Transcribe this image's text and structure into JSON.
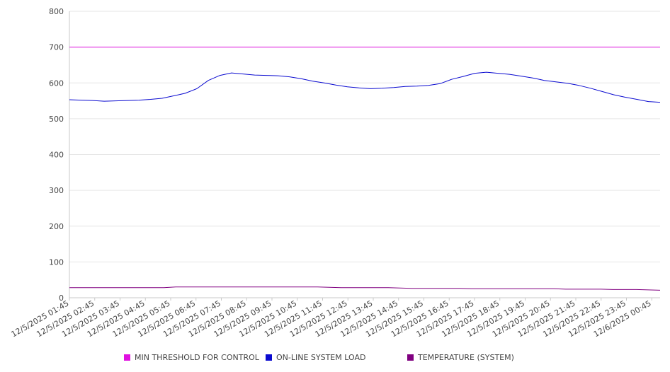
{
  "chart_data": {
    "type": "line",
    "title": "",
    "xlabel": "",
    "ylabel": "",
    "ylim": [
      0,
      800
    ],
    "yticks": [
      0,
      100,
      200,
      300,
      400,
      500,
      600,
      700,
      800
    ],
    "grid": true,
    "legend_position": "bottom",
    "x_tick_labels": [
      "12/5/2025 01:45",
      "12/5/2025 02:45",
      "12/5/2025 03:45",
      "12/5/2025 04:45",
      "12/5/2025 05:45",
      "12/5/2025 06:45",
      "12/5/2025 07:45",
      "12/5/2025 08:45",
      "12/5/2025 09:45",
      "12/5/2025 10:45",
      "12/5/2025 11:45",
      "12/5/2025 12:45",
      "12/5/2025 13:45",
      "12/5/2025 14:45",
      "12/5/2025 15:45",
      "12/5/2025 16:45",
      "12/5/2025 17:45",
      "12/5/2025 18:45",
      "12/5/2025 19:45",
      "12/5/2025 20:45",
      "12/5/2025 21:45",
      "12/5/2025 22:45",
      "12/5/2025 23:45",
      "12/6/2025 00:45"
    ],
    "series": [
      {
        "name": "MIN THRESHOLD FOR CONTROL",
        "color": "#e010e0",
        "values": [
          700,
          700,
          700,
          700,
          700,
          700,
          700,
          700,
          700,
          700,
          700,
          700,
          700,
          700,
          700,
          700,
          700,
          700,
          700,
          700,
          700,
          700,
          700,
          700,
          700,
          700,
          700,
          700,
          700,
          700,
          700,
          700,
          700,
          700,
          700,
          700,
          700,
          700,
          700,
          700,
          700,
          700,
          700,
          700,
          700,
          700,
          700,
          700,
          700
        ]
      },
      {
        "name": "ON-LINE SYSTEM LOAD",
        "color": "#0a0ad0",
        "values": [
          553,
          552,
          551,
          549,
          550,
          551,
          552,
          554,
          557,
          564,
          571,
          584,
          607,
          621,
          628,
          625,
          622,
          621,
          620,
          617,
          612,
          605,
          600,
          594,
          589,
          586,
          584,
          585,
          587,
          590,
          591,
          593,
          598,
          610,
          618,
          627,
          630,
          627,
          624,
          619,
          614,
          607,
          603,
          599,
          593,
          585,
          576,
          567,
          560,
          554,
          548,
          546
        ]
      },
      {
        "name": "TEMPERATURE (SYSTEM)",
        "color": "#800080",
        "values": [
          28,
          28,
          28,
          28,
          28,
          28,
          28,
          28,
          28,
          30,
          30,
          30,
          30,
          30,
          30,
          30,
          30,
          30,
          30,
          30,
          30,
          30,
          29,
          28,
          28,
          28,
          28,
          28,
          27,
          26,
          26,
          26,
          26,
          26,
          25,
          25,
          25,
          25,
          25,
          25,
          25,
          25,
          24,
          24,
          24,
          24,
          23,
          23,
          23,
          22,
          21
        ]
      }
    ]
  }
}
